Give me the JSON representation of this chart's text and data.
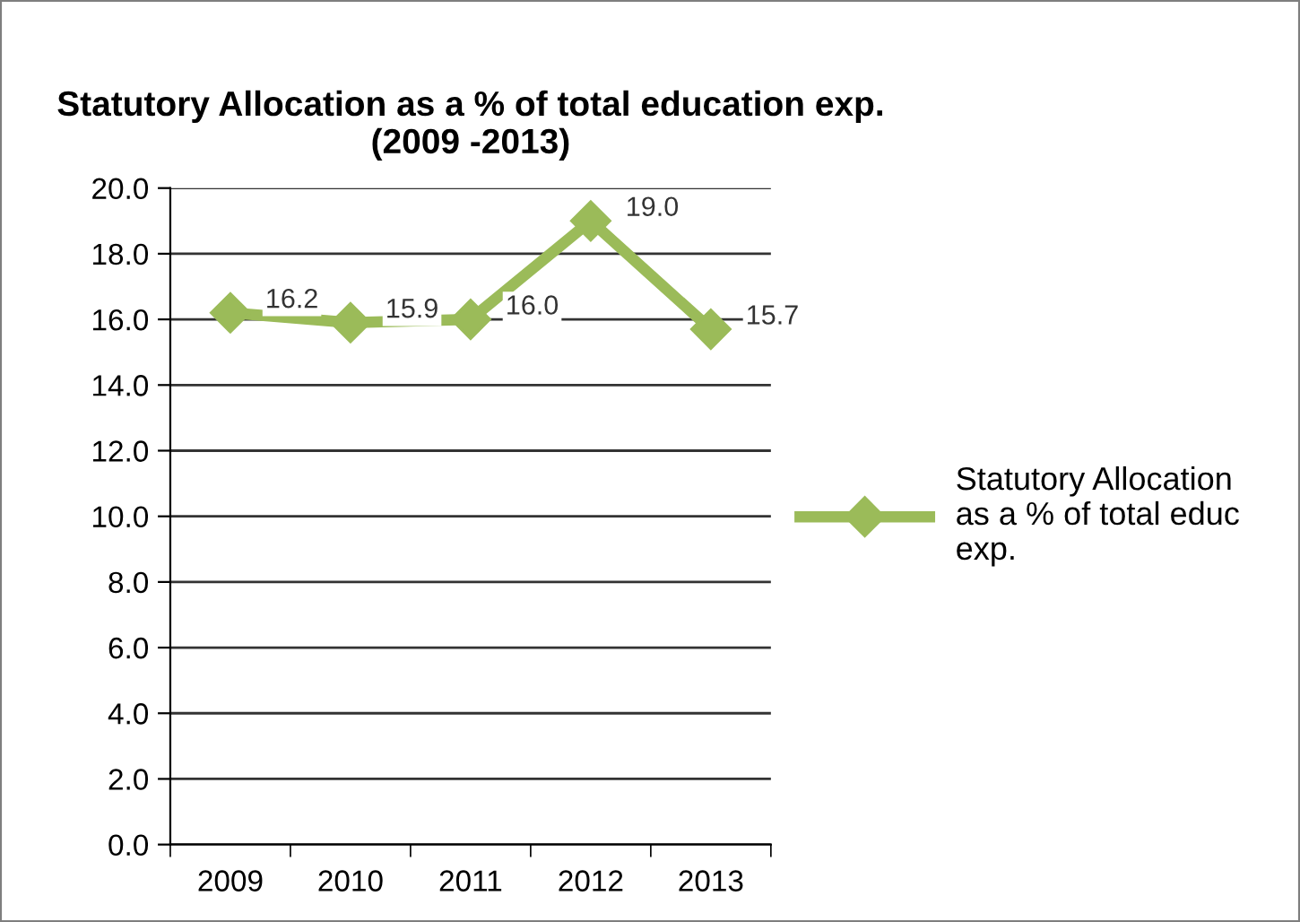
{
  "chart_data": {
    "type": "line",
    "title": "Statutory Allocation as a % of total education exp.\n(2009 -2013)",
    "categories": [
      "2009",
      "2010",
      "2011",
      "2012",
      "2013"
    ],
    "series": [
      {
        "name": "Statutory Allocation\nas a % of total educ\nexp.",
        "color": "#9bbb59",
        "values": [
          16.2,
          15.9,
          16.0,
          19.0,
          15.7
        ],
        "value_labels": [
          "16.2",
          "15.9",
          "16.0",
          "19.0",
          "15.7"
        ]
      }
    ],
    "ylim": [
      0,
      20
    ],
    "yticks": [
      {
        "value": 0,
        "label": "0.0"
      },
      {
        "value": 2,
        "label": "2.0"
      },
      {
        "value": 4,
        "label": "4.0"
      },
      {
        "value": 6,
        "label": "6.0"
      },
      {
        "value": 8,
        "label": "8.0"
      },
      {
        "value": 10,
        "label": "10.0"
      },
      {
        "value": 12,
        "label": "12.0"
      },
      {
        "value": 14,
        "label": "14.0"
      },
      {
        "value": 16,
        "label": "16.0"
      },
      {
        "value": 18,
        "label": "18.0"
      },
      {
        "value": 20,
        "label": "20.0"
      }
    ],
    "grid": "y",
    "legend": "right",
    "marker": "diamond",
    "line_style": "solid"
  }
}
